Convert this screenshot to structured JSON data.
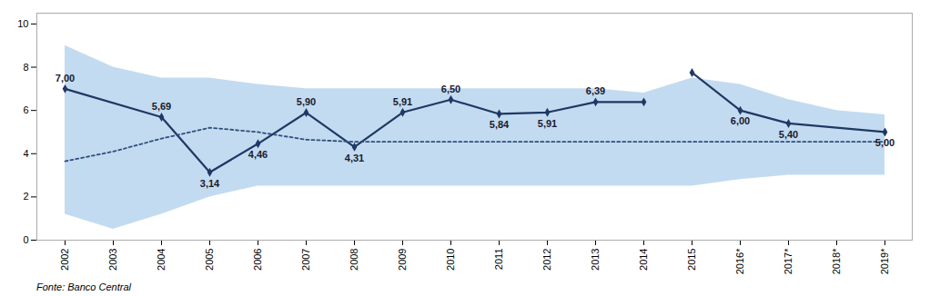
{
  "chart_data": {
    "type": "line",
    "categories": [
      "2002",
      "2003",
      "2004",
      "2005",
      "2006",
      "2007",
      "2008",
      "2009",
      "2010",
      "2011",
      "2012",
      "2013",
      "2014",
      "2015",
      "2016*",
      "2017*",
      "2018*",
      "2019*"
    ],
    "series": [
      {
        "color": "#1F3864",
        "marker": "diamond",
        "line_style": "solid",
        "values": [
          7.0,
          null,
          5.69,
          3.14,
          4.46,
          5.9,
          4.31,
          5.91,
          6.5,
          5.84,
          5.91,
          6.39,
          6.39,
          null,
          null,
          null,
          null,
          null
        ],
        "value_labels": [
          "7,00",
          null,
          "5,69",
          "3,14",
          "4,46",
          "5,90",
          "4,31",
          "5,91",
          "6,50",
          "5,84",
          "5,91",
          "6,39",
          null,
          null,
          null,
          null,
          null,
          null
        ]
      },
      {
        "color": "#1F3864",
        "marker": "diamond",
        "line_style": "solid",
        "values": [
          null,
          null,
          null,
          null,
          null,
          null,
          null,
          null,
          null,
          null,
          null,
          null,
          null,
          7.75,
          6.0,
          5.4,
          null,
          5.0
        ],
        "value_labels": [
          null,
          null,
          null,
          null,
          null,
          null,
          null,
          null,
          null,
          null,
          null,
          null,
          null,
          null,
          "6,00",
          "5,40",
          null,
          "5,00"
        ]
      },
      {
        "color": "#2F4F7F",
        "line_style": "dotted",
        "values": [
          3.65,
          4.1,
          4.7,
          5.2,
          5.0,
          4.65,
          4.55,
          4.55,
          4.55,
          4.55,
          4.55,
          4.55,
          4.55,
          4.55,
          4.55,
          4.55,
          4.55,
          4.55
        ]
      }
    ],
    "band": {
      "color": "#BDD7EE",
      "upper": [
        9.0,
        8.0,
        7.5,
        7.5,
        7.2,
        7.0,
        7.0,
        7.0,
        7.0,
        7.0,
        7.0,
        7.0,
        6.8,
        7.5,
        7.2,
        6.5,
        6.0,
        5.8
      ],
      "lower": [
        1.2,
        0.5,
        1.2,
        2.0,
        2.5,
        2.5,
        2.5,
        2.5,
        2.5,
        2.5,
        2.5,
        2.5,
        2.5,
        2.5,
        2.8,
        3.0,
        3.0,
        3.0
      ]
    },
    "ylim": [
      0,
      10.5
    ],
    "yticks": [
      0,
      2,
      4,
      6,
      8,
      10
    ],
    "grid": false,
    "data_labels": true,
    "source": "Fonte: Banco Central"
  }
}
